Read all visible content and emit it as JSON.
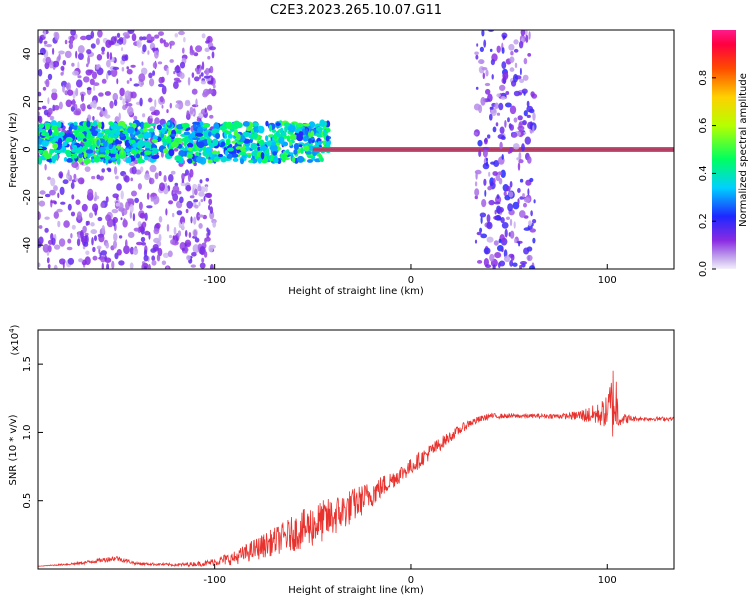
{
  "title": "C2E3.2023.265.10.07.G11",
  "chart_data": [
    {
      "type": "heatmap",
      "xlabel": "Height of straight line (km)",
      "ylabel": "Frequency (Hz)",
      "xlim": [
        -190,
        134
      ],
      "ylim": [
        -50,
        50
      ],
      "xticks": [
        -100,
        0,
        100
      ],
      "yticks": [
        -40,
        -20,
        0,
        20,
        40
      ],
      "colorbar": {
        "label": "Normalized spectral amplitude",
        "range": [
          0,
          1
        ],
        "ticks": [
          "0.0",
          "0.2",
          "0.4",
          "0.6",
          "0.8"
        ]
      },
      "features": [
        {
          "name": "noisy scatter",
          "x_range": [
            -190,
            -100
          ],
          "freq_range": [
            -50,
            50
          ],
          "amplitude": 0.15
        },
        {
          "name": "main band",
          "x_range": [
            -190,
            -42
          ],
          "freq_center": 3,
          "freq_halfwidth": 8,
          "amplitude": 0.35
        },
        {
          "name": "tracked line",
          "x_range": [
            -50,
            134
          ],
          "freq_center": 0,
          "amplitude": 0.9
        },
        {
          "name": "noisy gap",
          "x_range": [
            33,
            63
          ],
          "freq_range": [
            -50,
            50
          ],
          "amplitude": 0.2
        }
      ]
    },
    {
      "type": "line",
      "xlabel": "Height of straight line (km)",
      "ylabel": "SNR (10 * v/v)",
      "scale_label": "(x10",
      "scale_exp": "4",
      "xlim": [
        -190,
        134
      ],
      "ylim": [
        0,
        1.75
      ],
      "xticks": [
        -100,
        0,
        100
      ],
      "yticks": [
        0.5,
        1.0,
        1.5
      ],
      "ytick_labels": [
        "0.5",
        "1.0",
        "1.5"
      ],
      "color": "#e8322e",
      "series": [
        {
          "x": [
            -190,
            -170,
            -150,
            -140,
            -120,
            -105,
            -90,
            -80,
            -70,
            -60,
            -50,
            -40,
            -30,
            -20,
            -10,
            0,
            10,
            20,
            30,
            40,
            60,
            80,
            95,
            100,
            104,
            106,
            115,
            134
          ],
          "y": [
            0.02,
            0.04,
            0.08,
            0.04,
            0.03,
            0.04,
            0.08,
            0.14,
            0.2,
            0.26,
            0.32,
            0.38,
            0.46,
            0.55,
            0.65,
            0.75,
            0.86,
            0.97,
            1.07,
            1.12,
            1.12,
            1.12,
            1.13,
            1.15,
            1.25,
            1.1,
            1.1,
            1.1
          ],
          "noise": [
            0.0,
            0.01,
            0.02,
            0.01,
            0.01,
            0.02,
            0.05,
            0.08,
            0.1,
            0.13,
            0.16,
            0.15,
            0.13,
            0.1,
            0.07,
            0.06,
            0.06,
            0.04,
            0.03,
            0.02,
            0.015,
            0.02,
            0.08,
            0.12,
            0.35,
            0.05,
            0.015,
            0.015
          ]
        }
      ]
    }
  ]
}
